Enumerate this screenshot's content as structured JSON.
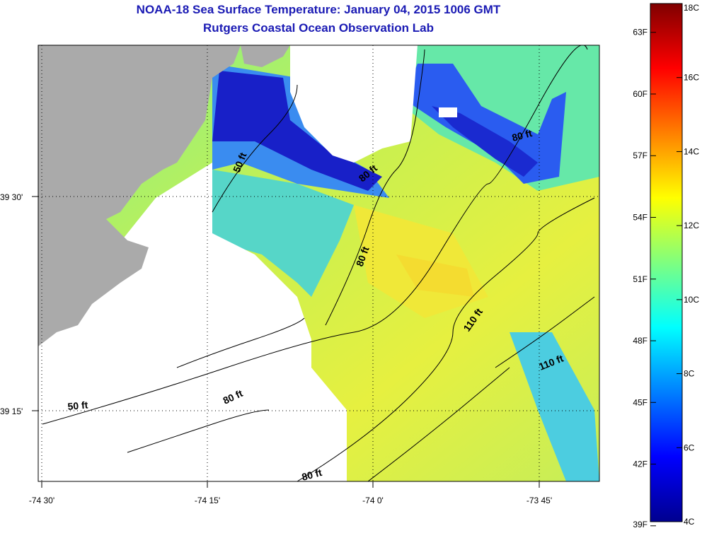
{
  "title": "NOAA-18 Sea Surface Temperature:  January 04, 2015 1006 GMT",
  "subtitle": "Rutgers Coastal Ocean Observation Lab",
  "axes": {
    "x_ticks": [
      "-74 30'",
      "-74 15'",
      "-74 0'",
      "-73 45'"
    ],
    "y_ticks": [
      "39 30'",
      "39 15'"
    ]
  },
  "contour_labels": [
    "50 ft",
    "80 ft",
    "80 ft",
    "80 ft",
    "110 ft",
    "110 ft",
    "80 ft",
    "50 ft",
    "80 ft"
  ],
  "colorbar": {
    "celsius": [
      "18C",
      "16C",
      "14C",
      "12C",
      "10C",
      "8C",
      "6C",
      "4C"
    ],
    "fahrenheit": [
      "63F",
      "60F",
      "57F",
      "54F",
      "51F",
      "48F",
      "45F",
      "42F",
      "39F"
    ],
    "min_c": 4,
    "max_c": 18
  },
  "colors": {
    "land": "#aaaaaa",
    "title": "#1a1ab4",
    "cold": "#00008f",
    "mid": "#7fff7f",
    "warm": "#ffaa00",
    "hot": "#7f0000"
  }
}
